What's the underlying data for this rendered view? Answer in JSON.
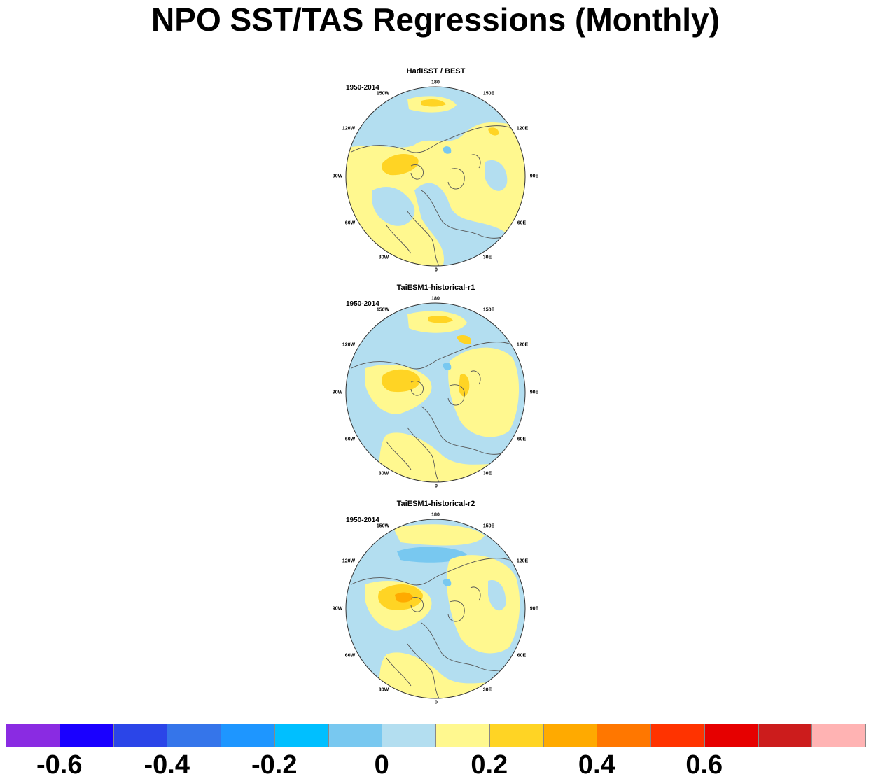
{
  "title": "NPO SST/TAS Regressions (Monthly)",
  "panels": [
    {
      "title": "HadISST / BEST",
      "period": "1950-2014",
      "lon_labels": [
        "180",
        "150E",
        "120E",
        "90E",
        "60E",
        "30E",
        "0",
        "30W",
        "60W",
        "90W",
        "120W",
        "150W"
      ]
    },
    {
      "title": "TaiESM1-historical-r1",
      "period": "1950-2014",
      "lon_labels": [
        "180",
        "150E",
        "120E",
        "90E",
        "60E",
        "30E",
        "0",
        "30W",
        "60W",
        "90W",
        "120W",
        "150W"
      ]
    },
    {
      "title": "TaiESM1-historical-r2",
      "period": "1950-2014",
      "lon_labels": [
        "180",
        "150E",
        "120E",
        "90E",
        "60E",
        "30E",
        "0",
        "30W",
        "60W",
        "90W",
        "120W",
        "150W"
      ]
    }
  ],
  "colorbar": {
    "colors": [
      "#8a2be2",
      "#1a00ff",
      "#2b45e8",
      "#3575ea",
      "#1e96ff",
      "#00bfff",
      "#78c8f0",
      "#b3def0",
      "#fff88f",
      "#ffd424",
      "#ffaa00",
      "#ff7700",
      "#ff3300",
      "#e60000",
      "#cc1c1c",
      "#ffb3b3"
    ],
    "labels": [
      "-0.6",
      "-0.4",
      "-0.2",
      "0",
      "0.2",
      "0.4",
      "0.6"
    ]
  }
}
